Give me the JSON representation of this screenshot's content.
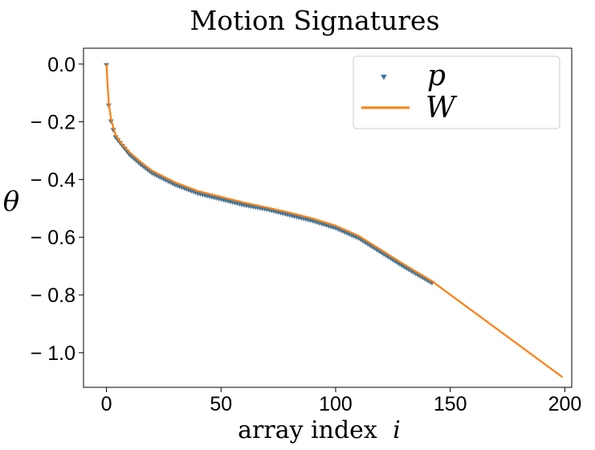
{
  "chart_data": {
    "type": "line",
    "title": "Motion Signatures",
    "xlabel": "array index",
    "xlabel_symbol": "i",
    "ylabel": "θ",
    "xlim": [
      -10,
      203
    ],
    "ylim": [
      -1.12,
      0.055
    ],
    "xticks": [
      0,
      50,
      100,
      150,
      200
    ],
    "yticks": [
      0.0,
      -0.2,
      -0.4,
      -0.6,
      -0.8,
      -1.0
    ],
    "xtick_labels": [
      "0",
      "50",
      "100",
      "150",
      "200"
    ],
    "ytick_labels": [
      "0.0",
      "− 0.2",
      "− 0.4",
      "− 0.6",
      "− 0.8",
      "− 1.0"
    ],
    "legend": {
      "placement": "top-right",
      "entries": [
        "p",
        "W"
      ]
    },
    "grid": false,
    "colors": {
      "p": "#1f77b4",
      "W": "#ff7f0e",
      "p_edge": "#7f7f7f"
    },
    "series": [
      {
        "name": "p",
        "marker": "triangle-down",
        "x_range": [
          0,
          142
        ],
        "anchors": [
          [
            0,
            0.0
          ],
          [
            1,
            -0.14
          ],
          [
            2,
            -0.195
          ],
          [
            3,
            -0.225
          ],
          [
            4,
            -0.25
          ],
          [
            6,
            -0.27
          ],
          [
            10,
            -0.31
          ],
          [
            15,
            -0.345
          ],
          [
            20,
            -0.375
          ],
          [
            30,
            -0.415
          ],
          [
            40,
            -0.445
          ],
          [
            50,
            -0.465
          ],
          [
            60,
            -0.485
          ],
          [
            70,
            -0.5
          ],
          [
            80,
            -0.52
          ],
          [
            90,
            -0.54
          ],
          [
            100,
            -0.565
          ],
          [
            110,
            -0.6
          ],
          [
            120,
            -0.65
          ],
          [
            130,
            -0.7
          ],
          [
            142,
            -0.755
          ]
        ]
      },
      {
        "name": "W",
        "style": "line",
        "points": [
          [
            0,
            0.0
          ],
          [
            1,
            -0.135
          ],
          [
            2,
            -0.19
          ],
          [
            3,
            -0.22
          ],
          [
            4,
            -0.245
          ],
          [
            6,
            -0.27
          ],
          [
            10,
            -0.305
          ],
          [
            15,
            -0.34
          ],
          [
            20,
            -0.37
          ],
          [
            30,
            -0.41
          ],
          [
            40,
            -0.44
          ],
          [
            50,
            -0.46
          ],
          [
            60,
            -0.48
          ],
          [
            70,
            -0.497
          ],
          [
            80,
            -0.515
          ],
          [
            90,
            -0.535
          ],
          [
            100,
            -0.56
          ],
          [
            110,
            -0.595
          ],
          [
            120,
            -0.645
          ],
          [
            130,
            -0.695
          ],
          [
            142,
            -0.752
          ],
          [
            199,
            -1.085
          ]
        ]
      }
    ]
  }
}
